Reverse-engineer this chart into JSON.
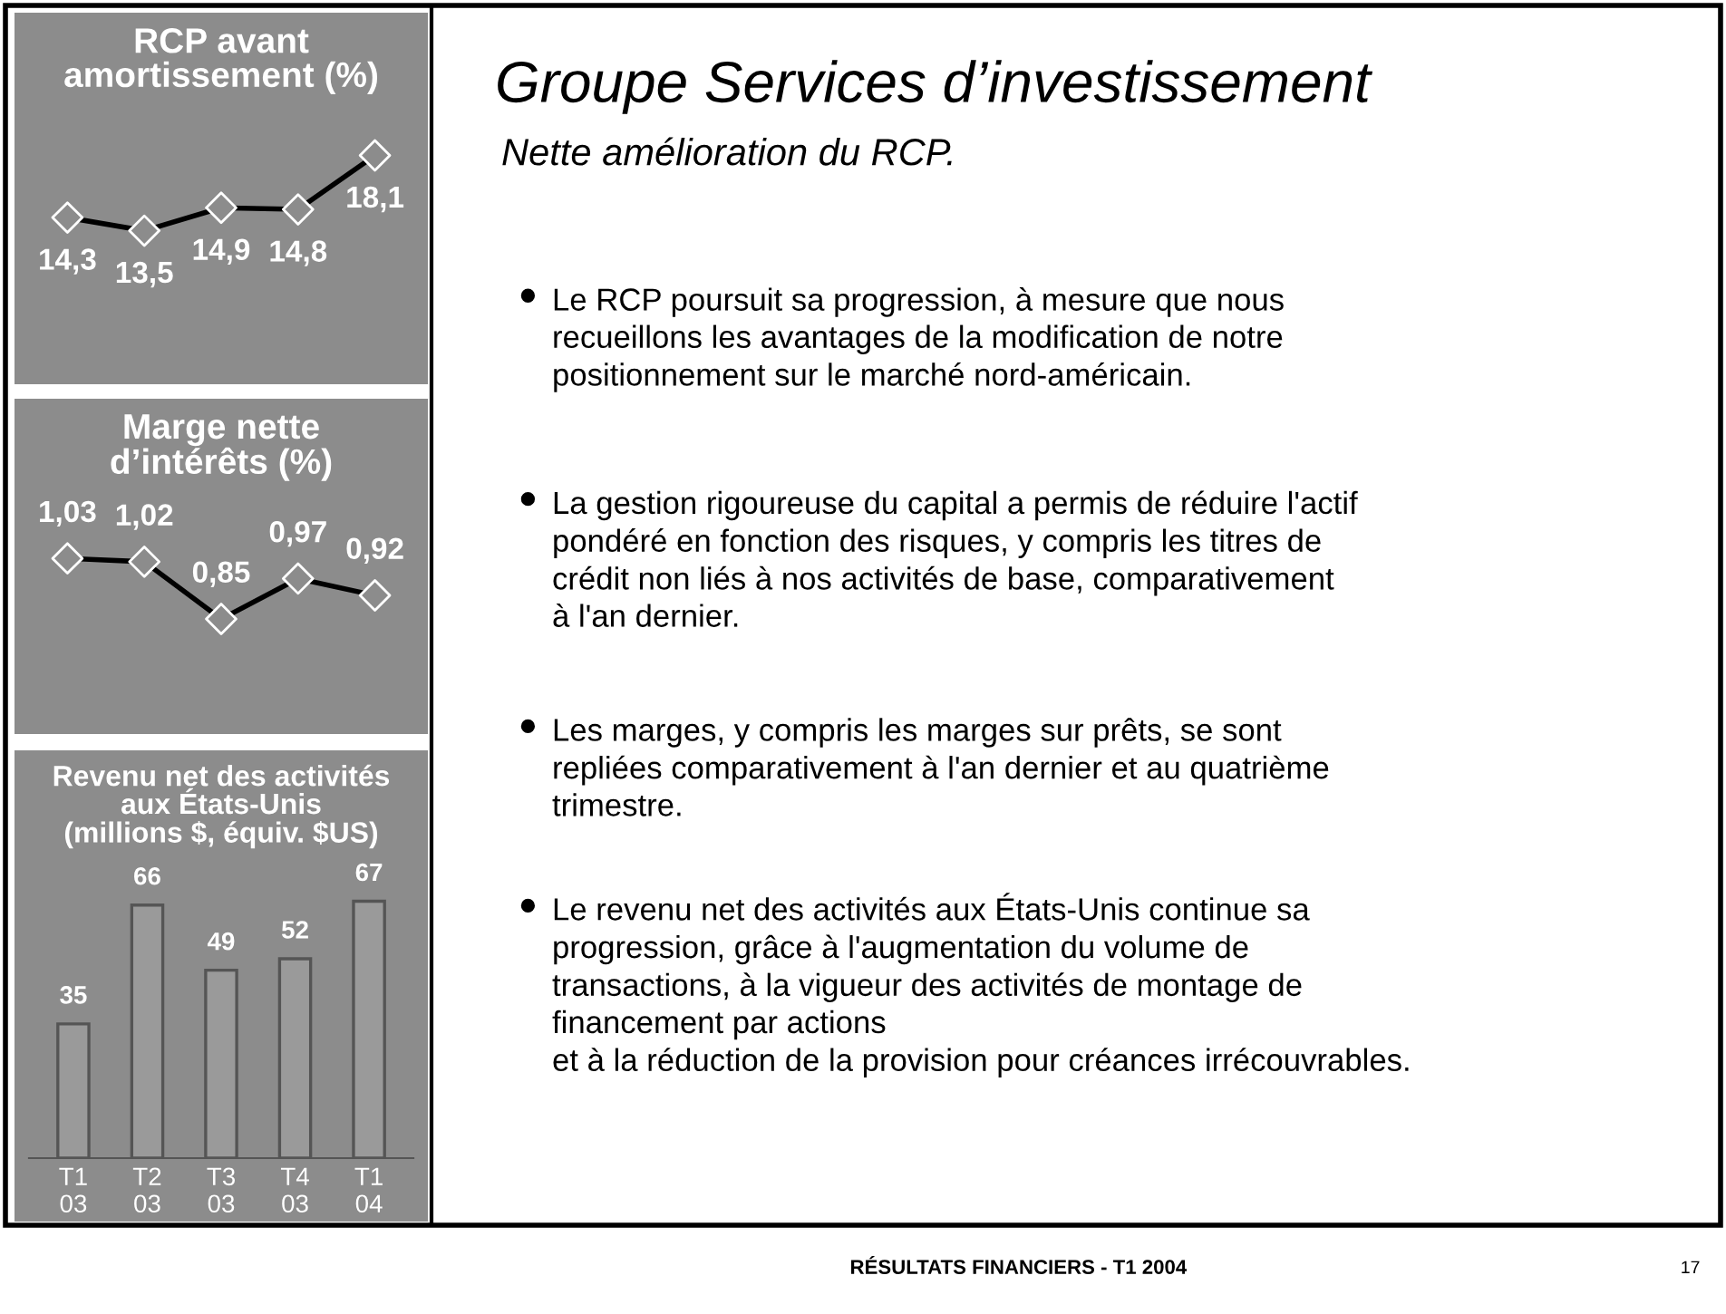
{
  "chart_data": [
    {
      "type": "line",
      "title": "RCP avant\namortissement (%)",
      "categories": [
        null,
        null,
        null,
        null,
        null
      ],
      "values": [
        14.3,
        13.5,
        14.9,
        14.8,
        18.1
      ],
      "value_labels": [
        "14,3",
        "13,5",
        "14,9",
        "14,8",
        "18,1"
      ],
      "color": "#000000",
      "marker": "diamond"
    },
    {
      "type": "line",
      "title": "Marge nette\nd’intérêts (%)",
      "categories": [
        null,
        null,
        null,
        null,
        null
      ],
      "values": [
        1.03,
        1.02,
        0.85,
        0.97,
        0.92
      ],
      "value_labels": [
        "1,03",
        "1,02",
        "0,85",
        "0,97",
        "0,92"
      ],
      "color": "#000000",
      "marker": "diamond"
    },
    {
      "type": "bar",
      "title": "Revenu net des activités\naux États-Unis\n(millions $, équiv. $US)",
      "categories": [
        "T1\n03",
        "T2\n03",
        "T3\n03",
        "T4\n03",
        "T1\n04"
      ],
      "values": [
        35,
        66,
        49,
        52,
        67
      ],
      "color": "#9a9a9a",
      "data_labels": true
    },
    {
      "type": "other",
      "title": "Groupe Services d’investissement",
      "subtitle": "Nette amélioration du RCP.",
      "annotations": [
        "Le RCP poursuit sa progression, à mesure que nous\nrecueillons les avantages de la modification de notre\npositionnement sur le marché nord-américain.",
        "La gestion rigoureuse du capital a permis de réduire l'actif\npondéré en fonction des risques, y compris les titres de\ncrédit non liés à nos activités de base, comparativement\nà l'an dernier.",
        "Les marges, y compris les marges sur prêts, se sont\nrepliées comparativement à l'an dernier et au quatrième\ntrimestre.",
        "Le revenu net des activités aux États-Unis continue sa\nprogression, grâce à l'augmentation du volume de\ntransactions, à la vigueur des activités de montage de\nfinancement par actions\net à la réduction de la provision pour créances irrécouvrables.",
        "RÉSULTATS FINANCIERS - T1 2004",
        "17"
      ]
    }
  ]
}
